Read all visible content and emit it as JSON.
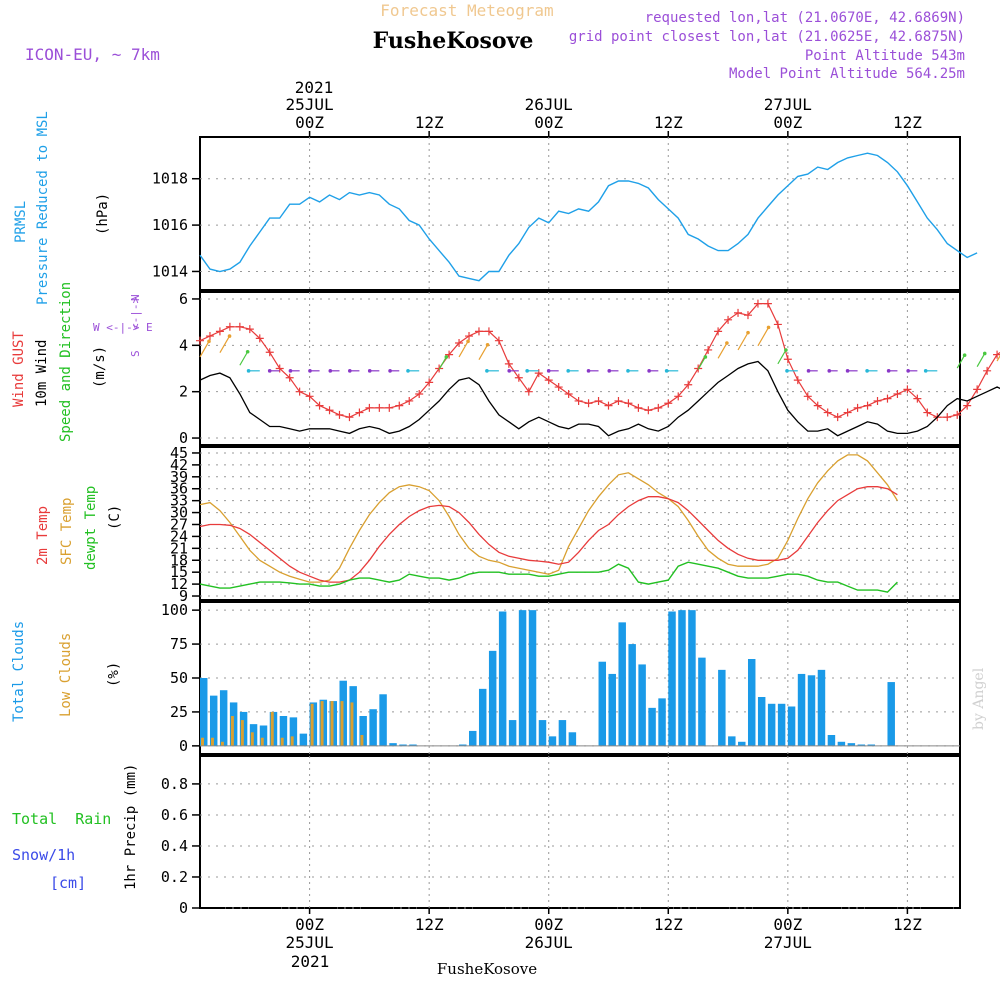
{
  "header": {
    "title_top": "Forecast Meteogram",
    "location": "FusheKosove",
    "model": "ICON-EU, ~ 7km",
    "requested": "requested lon,lat (21.0670E, 42.6869N)",
    "closest": "grid point closest lon,lat (21.0625E, 42.6875N)",
    "point_alt": "Point Altitude 543m",
    "model_alt": "Model Point Altitude 564.25m",
    "footer_location": "FusheKosove",
    "watermark": "by Angel"
  },
  "time_axis": {
    "top_year": "2021",
    "labels": [
      {
        "t": 0,
        "line1": "25JUL",
        "line2": "00Z"
      },
      {
        "t": 12,
        "line1": "",
        "line2": "12Z"
      },
      {
        "t": 24,
        "line1": "26JUL",
        "line2": "00Z"
      },
      {
        "t": 36,
        "line1": "",
        "line2": "12Z"
      },
      {
        "t": 48,
        "line1": "27JUL",
        "line2": "00Z"
      },
      {
        "t": 60,
        "line1": "",
        "line2": "12Z"
      }
    ],
    "bottom_year": "2021"
  },
  "panel_labels": {
    "prmsl": "PRMSL",
    "prmsl_desc": "Pressure Reduced to MSL",
    "prmsl_unit": "(hPa)",
    "gust": "Wind GUST",
    "wind10": "10m Wind",
    "speed_dir": "Speed and Direction",
    "wind_unit": "(m/s)",
    "compass_n": "N",
    "compass_s": "S",
    "compass_w": "W <-|-> E",
    "temp2m": "2m Temp",
    "sfctemp": "SFC Temp",
    "dewpt": "dewpt Temp",
    "temp_unit": "(C)",
    "total_clouds": "Total Clouds",
    "low_clouds": "Low Clouds",
    "cloud_unit": "(%)",
    "total_rain": "Total  Rain",
    "snow": "Snow/1h",
    "snow_unit": "[cm]",
    "precip": "1hr Precip (mm)"
  },
  "colors": {
    "pressure": "#1fa0e8",
    "gust": "#e83b3b",
    "wind": "#000000",
    "temp2m": "#e83b3b",
    "sfctemp": "#d9a030",
    "dewpt": "#22c022",
    "total_clouds": "#1a9ae8",
    "low_clouds": "#d9a030",
    "title_top": "#f0c890",
    "purple": "#9b4fd8",
    "rain_green": "#22c022",
    "snow_blue": "#3a4ae8"
  },
  "chart_data": [
    {
      "type": "line",
      "title": "PRMSL",
      "ylabel": "(hPa)",
      "yticks": [
        1014,
        1016,
        1018
      ],
      "ylim": [
        1013.2,
        1019.8
      ],
      "series": [
        {
          "name": "PRMSL",
          "t_start": -11,
          "values": [
            1014.7,
            1014.1,
            1014.0,
            1014.1,
            1014.4,
            1015.1,
            1015.7,
            1016.3,
            1016.3,
            1016.9,
            1016.9,
            1017.2,
            1017.0,
            1017.3,
            1017.1,
            1017.4,
            1017.3,
            1017.4,
            1017.3,
            1016.9,
            1016.7,
            1016.2,
            1016.0,
            1015.4,
            1014.9,
            1014.4,
            1013.8,
            1013.7,
            1013.6,
            1014.0,
            1014.0,
            1014.7,
            1015.2,
            1015.9,
            1016.3,
            1016.1,
            1016.6,
            1016.5,
            1016.7,
            1016.6,
            1017.0,
            1017.7,
            1017.9,
            1017.9,
            1017.8,
            1017.6,
            1017.1,
            1016.7,
            1016.3,
            1015.6,
            1015.4,
            1015.1,
            1014.9,
            1014.9,
            1015.2,
            1015.6,
            1016.3,
            1016.8,
            1017.3,
            1017.7,
            1018.1,
            1018.2,
            1018.5,
            1018.4,
            1018.7,
            1018.9,
            1019.0,
            1019.1,
            1019.0,
            1018.7,
            1018.3,
            1017.7,
            1017.0,
            1016.3,
            1015.8,
            1015.2,
            1014.9,
            1014.6,
            1014.8
          ]
        }
      ]
    },
    {
      "type": "line",
      "title": "Wind",
      "ylabel": "(m/s)",
      "yticks": [
        0,
        2,
        4,
        6
      ],
      "ylim": [
        -0.3,
        6.3
      ],
      "series": [
        {
          "name": "Wind GUST",
          "t_start": -11,
          "values": [
            4.2,
            4.4,
            4.6,
            4.8,
            4.8,
            4.7,
            4.3,
            3.7,
            3.0,
            2.6,
            2.0,
            1.8,
            1.4,
            1.2,
            1.0,
            0.9,
            1.1,
            1.3,
            1.3,
            1.3,
            1.4,
            1.6,
            1.9,
            2.4,
            3.0,
            3.6,
            4.1,
            4.4,
            4.6,
            4.6,
            4.2,
            3.2,
            2.6,
            2.0,
            2.8,
            2.5,
            2.2,
            1.9,
            1.6,
            1.5,
            1.6,
            1.4,
            1.6,
            1.5,
            1.3,
            1.2,
            1.3,
            1.5,
            1.8,
            2.3,
            3.0,
            3.8,
            4.6,
            5.1,
            5.4,
            5.3,
            5.8,
            5.8,
            4.9,
            3.4,
            2.5,
            1.8,
            1.4,
            1.1,
            0.9,
            1.1,
            1.3,
            1.4,
            1.6,
            1.7,
            1.9,
            2.1,
            1.7,
            1.1,
            0.9,
            0.9,
            1.0,
            1.4,
            2.1,
            2.9,
            3.6,
            3.9,
            3.7,
            4.1,
            4.3,
            4.1,
            3.9,
            3.6,
            3.4
          ]
        },
        {
          "name": "10m Wind",
          "t_start": -11,
          "values": [
            2.5,
            2.7,
            2.8,
            2.6,
            1.9,
            1.1,
            0.8,
            0.5,
            0.5,
            0.4,
            0.3,
            0.4,
            0.4,
            0.4,
            0.3,
            0.2,
            0.4,
            0.5,
            0.4,
            0.2,
            0.3,
            0.5,
            0.8,
            1.2,
            1.6,
            2.1,
            2.5,
            2.6,
            2.3,
            1.6,
            1.0,
            0.7,
            0.4,
            0.7,
            0.9,
            0.7,
            0.5,
            0.4,
            0.6,
            0.6,
            0.5,
            0.1,
            0.3,
            0.4,
            0.6,
            0.4,
            0.3,
            0.5,
            0.9,
            1.2,
            1.6,
            2.0,
            2.4,
            2.7,
            3.0,
            3.2,
            3.3,
            2.9,
            2.0,
            1.2,
            0.7,
            0.3,
            0.3,
            0.4,
            0.1,
            0.3,
            0.5,
            0.7,
            0.6,
            0.3,
            0.2,
            0.2,
            0.3,
            0.5,
            0.9,
            1.4,
            1.7,
            1.6,
            1.8,
            2.0,
            2.2,
            2.0,
            1.8,
            1.5,
            1.0
          ]
        }
      ]
    },
    {
      "type": "line",
      "title": "Temperature",
      "ylabel": "(C)",
      "yticks": [
        9,
        12,
        15,
        18,
        21,
        24,
        27,
        30,
        33,
        36,
        39,
        42,
        45
      ],
      "ylim": [
        8,
        46.5
      ],
      "series": [
        {
          "name": "2m Temp",
          "t_start": -11,
          "values": [
            26.5,
            27.0,
            27.0,
            26.8,
            26.0,
            24.5,
            22.5,
            20.5,
            18.5,
            16.5,
            15.0,
            14.0,
            13.0,
            12.5,
            12.5,
            13.0,
            15.0,
            18.0,
            21.5,
            24.5,
            27.0,
            29.0,
            30.5,
            31.5,
            31.8,
            31.5,
            30.0,
            27.5,
            24.5,
            22.0,
            20.0,
            19.0,
            18.5,
            18.0,
            17.8,
            17.5,
            17.0,
            17.5,
            20.0,
            23.0,
            25.5,
            27.0,
            29.5,
            31.5,
            33.0,
            34.0,
            34.0,
            33.5,
            32.5,
            30.5,
            28.0,
            25.5,
            23.0,
            21.0,
            19.5,
            18.5,
            18.0,
            18.0,
            18.0,
            18.5,
            20.5,
            24.0,
            27.5,
            30.5,
            33.0,
            34.5,
            36.0,
            36.5,
            36.5,
            36.0,
            34.5
          ]
        },
        {
          "name": "SFC Temp",
          "t_start": -11,
          "values": [
            32.0,
            32.5,
            30.5,
            27.5,
            24.0,
            20.5,
            18.0,
            16.5,
            15.0,
            14.0,
            13.2,
            12.5,
            12.5,
            13.0,
            16.0,
            21.0,
            25.5,
            29.5,
            32.5,
            35.0,
            36.5,
            37.0,
            36.5,
            35.5,
            33.0,
            29.0,
            24.5,
            21.0,
            19.0,
            18.0,
            17.5,
            16.5,
            16.0,
            15.5,
            15.0,
            14.5,
            15.5,
            21.5,
            26.0,
            30.5,
            34.0,
            37.0,
            39.5,
            40.0,
            38.5,
            37.0,
            35.0,
            33.5,
            31.5,
            28.0,
            24.0,
            20.5,
            18.5,
            17.0,
            16.5,
            16.5,
            16.5,
            17.0,
            18.5,
            23.0,
            28.5,
            33.5,
            37.5,
            40.5,
            43.0,
            44.5,
            44.5,
            43.0,
            40.0,
            37.0,
            33.0
          ]
        },
        {
          "name": "dewpt Temp",
          "t_start": -11,
          "values": [
            12.0,
            11.5,
            11.0,
            11.0,
            11.5,
            12.0,
            12.5,
            12.5,
            12.5,
            12.3,
            12.0,
            12.0,
            11.5,
            11.5,
            12.0,
            13.0,
            13.5,
            13.5,
            13.0,
            12.5,
            13.0,
            14.5,
            14.0,
            13.5,
            13.5,
            13.0,
            13.5,
            14.5,
            15.0,
            15.0,
            15.0,
            14.5,
            14.5,
            14.5,
            14.0,
            14.0,
            14.5,
            15.0,
            15.0,
            15.0,
            15.0,
            15.5,
            17.0,
            16.0,
            12.5,
            12.0,
            12.5,
            13.0,
            16.5,
            17.5,
            17.0,
            16.5,
            16.0,
            15.0,
            14.0,
            13.5,
            13.5,
            13.5,
            14.0,
            14.5,
            14.5,
            14.0,
            13.0,
            12.5,
            12.5,
            11.5,
            10.5,
            10.5,
            10.5,
            10.0,
            12.5
          ]
        }
      ]
    },
    {
      "type": "bar",
      "title": "Clouds",
      "ylabel": "(%)",
      "yticks": [
        0,
        25,
        50,
        75,
        100
      ],
      "ylim": [
        -6,
        106
      ],
      "series": [
        {
          "name": "Total Clouds",
          "t_start": -11,
          "values": [
            50,
            37,
            41,
            32,
            25,
            16,
            15,
            25,
            22,
            21,
            9,
            32,
            34,
            33,
            48,
            44,
            22,
            27,
            38,
            2,
            1,
            1,
            0,
            0,
            0,
            0,
            1,
            11,
            42,
            70,
            99,
            19,
            100,
            100,
            19,
            7,
            19,
            10,
            0,
            0,
            62,
            53,
            91,
            75,
            60,
            28,
            35,
            99,
            100,
            100,
            65,
            0,
            56,
            7,
            3,
            64,
            36,
            31,
            31,
            29,
            53,
            52,
            56,
            8,
            3,
            2,
            1,
            1,
            0,
            47,
            0,
            0
          ]
        },
        {
          "name": "Low Clouds",
          "t_start": -11,
          "values": [
            6,
            6,
            3,
            22,
            19,
            10,
            6,
            25,
            6,
            7,
            0,
            31,
            33,
            33,
            33,
            32,
            8,
            0,
            0,
            0,
            0,
            0,
            0,
            0,
            0,
            0,
            0,
            0,
            0,
            0,
            0,
            0,
            0,
            0,
            0,
            0,
            0,
            0,
            0,
            0,
            0,
            0,
            0,
            0,
            0,
            0,
            0,
            0,
            0,
            0,
            0,
            0,
            0,
            0,
            0,
            0,
            0,
            0,
            0,
            0,
            0,
            0,
            0,
            0,
            0,
            0,
            0,
            0,
            0,
            0,
            0,
            0
          ]
        }
      ]
    },
    {
      "type": "bar",
      "title": "1hr Precip",
      "ylabel": "1hr Precip (mm)",
      "yticks": [
        0,
        0.2,
        0.4,
        0.6,
        0.8
      ],
      "ylim": [
        0,
        0.98
      ],
      "series": [
        {
          "name": "Total Rain",
          "values": []
        }
      ]
    }
  ]
}
